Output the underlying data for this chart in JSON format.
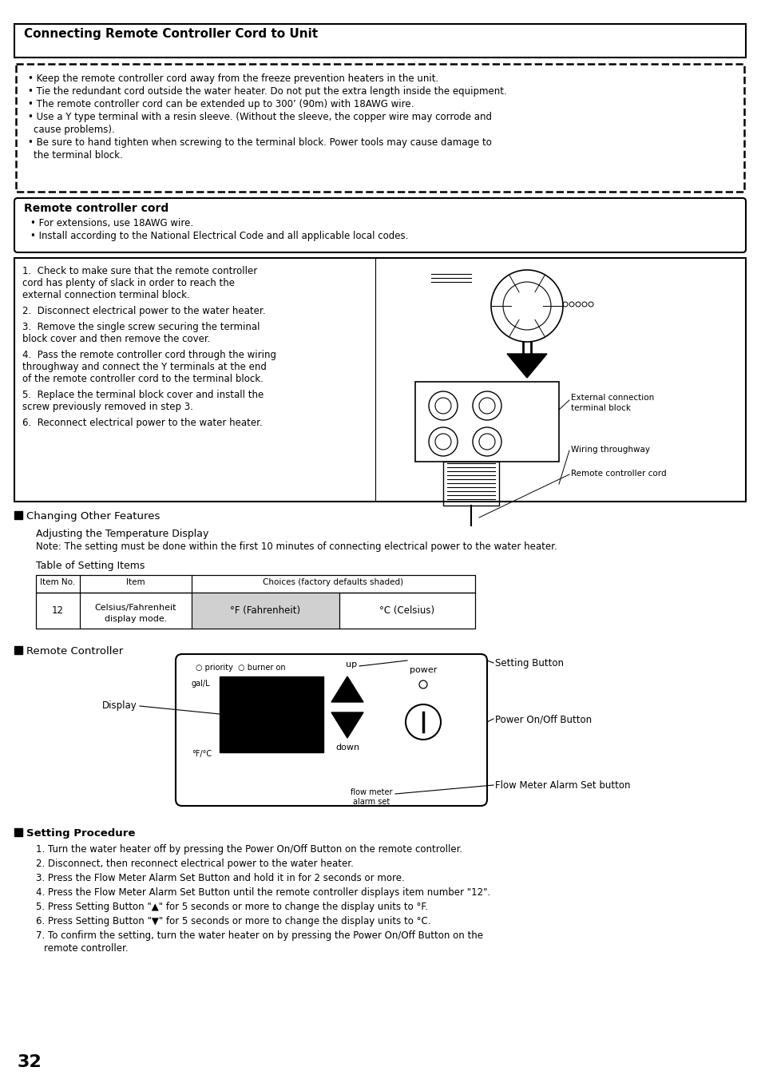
{
  "title": "Connecting Remote Controller Cord to Unit",
  "bg_color": "#ffffff",
  "warning_bullets": [
    "Keep the remote controller cord away from the freeze prevention heaters in the unit.",
    "Tie the redundant cord outside the water heater. Do not put the extra length inside the equipment.",
    "The remote controller cord can be extended up to 300’ (90m) with 18AWG wire.",
    "Use a Y type terminal with a resin sleeve. (Without the sleeve, the copper wire may corrode and\n    cause problems).",
    "Be sure to hand tighten when screwing to the terminal block. Power tools may cause damage to\n    the terminal block."
  ],
  "rcc_title": "Remote controller cord",
  "rcc_bullets": [
    "For extensions, use 18AWG wire.",
    "Install according to the National Electrical Code and all applicable local codes."
  ],
  "steps": [
    "1.  Check to make sure that the remote controller\n     cord has plenty of slack in order to reach the\n     external connection terminal block.",
    "2.  Disconnect electrical power to the water heater.",
    "3.  Remove the single screw securing the terminal\n     block cover and then remove the cover.",
    "4.  Pass the remote controller cord through the wiring\n     throughway and connect the Y terminals at the end\n     of the remote controller cord to the terminal block.",
    "5.  Replace the terminal block cover and install the\n     screw previously removed in step 3.",
    "6.  Reconnect electrical power to the water heater."
  ],
  "section2_title": "Changing Other Features",
  "subsection_title": "Adjusting the Temperature Display",
  "note_text": "Note: The setting must be done within the first 10 minutes of connecting electrical power to the water heater.",
  "table_title": "Table of Setting Items",
  "table_headers": [
    "Item No.",
    "Item",
    "Choices (factory defaults shaded)"
  ],
  "rc_section": "Remote Controller",
  "setting_btn_label": "Setting Button",
  "power_btn_label": "Power On/Off Button",
  "flow_meter_label": "Flow Meter Alarm Set button",
  "display_label": "Display",
  "setting_proc_title": "Setting Procedure",
  "setting_steps": [
    "1. Turn the water heater off by pressing the Power On/Off Button on the remote controller.",
    "2. Disconnect, then reconnect electrical power to the water heater.",
    "3. Press the Flow Meter Alarm Set Button and hold it in for 2 seconds or more.",
    "4. Press the Flow Meter Alarm Set Button until the remote controller displays item number \"12\".",
    "5. Press Setting Button \"▲\" for 5 seconds or more to change the display units to °F.",
    "6. Press Setting Button \"▼\" for 5 seconds or more to change the display units to °C.",
    "7. To confirm the setting, turn the water heater on by pressing the Power On/Off Button on the\n    remote controller."
  ],
  "page_number": "32"
}
